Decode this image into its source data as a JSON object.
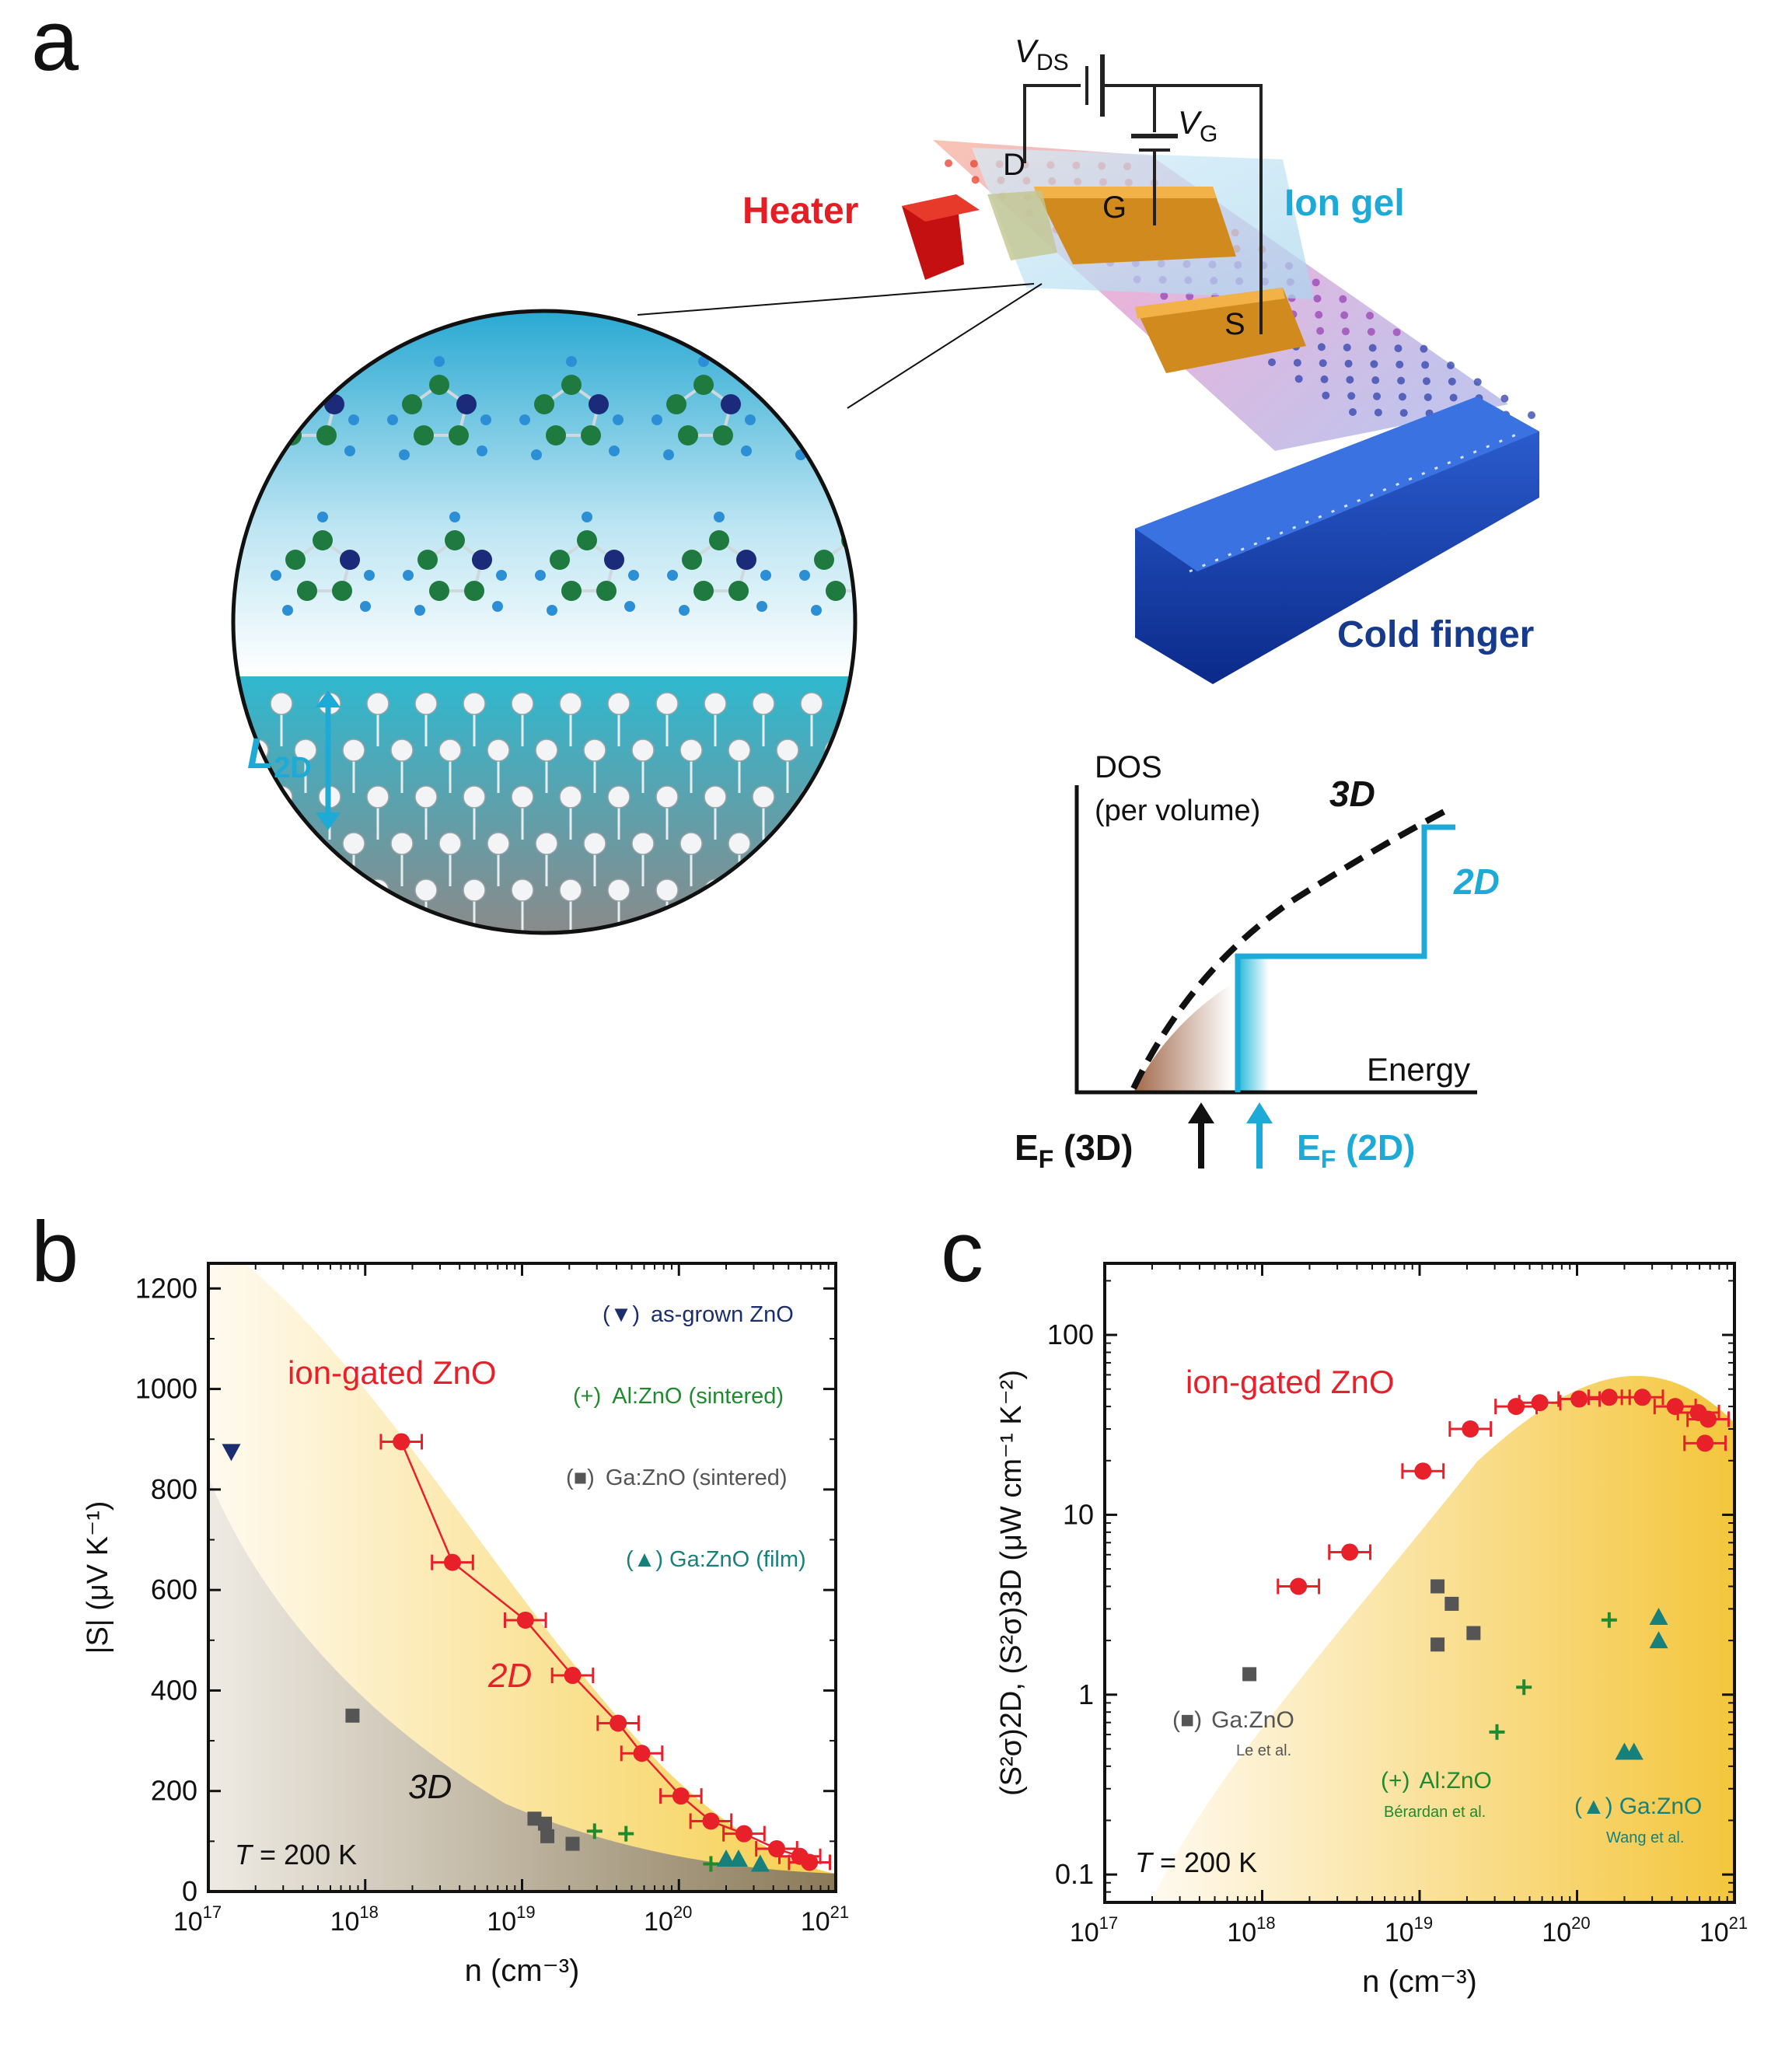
{
  "panel_a": {
    "letter": "a",
    "device": {
      "vds_main": "V",
      "vds_sub": "DS",
      "vg_main": "V",
      "vg_sub": "G",
      "drain": "D",
      "gate": "G",
      "source": "S",
      "heater": "Heater",
      "ion_gel": "Ion gel",
      "cold_finger": "Cold finger",
      "l2d_main": "L",
      "l2d_sub": "2D"
    },
    "dos": {
      "ylabel_line1": "DOS",
      "ylabel_line2": "(per volume)",
      "xlabel": "Energy",
      "label_3d": "3D",
      "label_2d": "2D",
      "ef3d_main": "E",
      "ef3d_sub": "F",
      "ef3d_rest": " (3D)",
      "ef2d_main": "E",
      "ef2d_sub": "F",
      "ef2d_rest": " (2D)"
    }
  },
  "panel_b": {
    "letter": "b",
    "curve_label": "ion-gated ZnO",
    "label_2d": "2D",
    "label_3d": "3D",
    "temp_prefix": "T",
    "temp_rest": " = 200 K",
    "legend": [
      {
        "marker": "(▼)",
        "label": "as-grown ZnO",
        "color": "#1a2e6e"
      },
      {
        "marker": "(+)",
        "label": "Al:ZnO (sintered)",
        "color": "#1f8a2e"
      },
      {
        "marker": "(■)",
        "label": "Ga:ZnO (sintered)",
        "color": "#555555"
      },
      {
        "marker": "(▲)",
        "label": "Ga:ZnO (film)",
        "color": "#17807a"
      }
    ]
  },
  "panel_c": {
    "letter": "c",
    "curve_label": "ion-gated ZnO",
    "temp_prefix": "T",
    "temp_rest": " = 200 K",
    "annotations": [
      {
        "marker": "(■)",
        "label": "Ga:ZnO",
        "ref": "Le et al.",
        "color": "#555555"
      },
      {
        "marker": "(+)",
        "label": "Al:ZnO",
        "ref": "Bérardan et al.",
        "color": "#1f8a2e"
      },
      {
        "marker": "(▲)",
        "label": "Ga:ZnO",
        "ref": "Wang et al.",
        "color": "#17807a"
      }
    ]
  },
  "chart_data": [
    {
      "panel": "b",
      "type": "scatter",
      "xscale": "log",
      "xlim": [
        1e+17,
        1e+21
      ],
      "ylim": [
        0,
        1250
      ],
      "xticks": [
        "10^17",
        "10^18",
        "10^19",
        "10^20",
        "10^21"
      ],
      "yticks": [
        0,
        200,
        400,
        600,
        800,
        1000,
        1200
      ],
      "xlabel": "n (cm⁻³)",
      "ylabel": "|S| (μV K⁻¹)",
      "series": [
        {
          "name": "ion-gated ZnO",
          "color": "#e8202a",
          "marker": "circle",
          "line": true,
          "errorbars_x": true,
          "x": [
            1.7e+18,
            3.6e+18,
            1.05e+19,
            2.1e+19,
            4.1e+19,
            5.8e+19,
            1.03e+20,
            1.6e+20,
            2.6e+20,
            4.2e+20,
            5.9e+20,
            6.8e+20
          ],
          "y": [
            895,
            655,
            540,
            430,
            335,
            275,
            190,
            140,
            115,
            85,
            70,
            58
          ]
        },
        {
          "name": "as-grown ZnO",
          "color": "#1a2e6e",
          "marker": "triangle-down",
          "x": [
            1.4e+17
          ],
          "y": [
            875
          ]
        },
        {
          "name": "Al:ZnO (sintered)",
          "color": "#1f8a2e",
          "marker": "plus",
          "x": [
            2.9e+19,
            4.6e+19,
            1.6e+20
          ],
          "y": [
            120,
            115,
            55
          ]
        },
        {
          "name": "Ga:ZnO (sintered)",
          "color": "#555555",
          "marker": "square",
          "x": [
            8.3e+17,
            1.2e+19,
            1.4e+19,
            1.45e+19,
            2.1e+19
          ],
          "y": [
            350,
            145,
            135,
            110,
            95
          ]
        },
        {
          "name": "Ga:ZnO (film)",
          "color": "#17807a",
          "marker": "triangle-up",
          "x": [
            2e+20,
            2.4e+20,
            3.3e+20
          ],
          "y": [
            65,
            65,
            55
          ]
        }
      ]
    },
    {
      "panel": "c",
      "type": "scatter",
      "xscale": "log",
      "yscale": "log",
      "xlim": [
        1e+17,
        1e+21
      ],
      "ylim": [
        0.07,
        250
      ],
      "xticks": [
        "10^17",
        "10^18",
        "10^19",
        "10^20",
        "10^21"
      ],
      "yticks": [
        "0.1",
        "1",
        "10",
        "100"
      ],
      "xlabel": "n (cm⁻³)",
      "ylabel": "(S²σ)2D, (S²σ)3D (μW cm⁻¹ K⁻²)",
      "series": [
        {
          "name": "ion-gated ZnO",
          "color": "#e8202a",
          "marker": "circle",
          "errorbars_x": true,
          "x": [
            1.7e+18,
            3.6e+18,
            1.05e+19,
            2.1e+19,
            4.1e+19,
            5.8e+19,
            1.03e+20,
            1.6e+20,
            2.6e+20,
            4.2e+20,
            5.9e+20,
            6.8e+20,
            6.5e+20
          ],
          "y": [
            4.0,
            6.2,
            17.5,
            30,
            40,
            42,
            44,
            45,
            45,
            40,
            37,
            34,
            25
          ]
        },
        {
          "name": "Ga:ZnO (Le et al.)",
          "color": "#555555",
          "marker": "square",
          "x": [
            8.3e+17,
            1.3e+19,
            1.3e+19,
            1.6e+19,
            2.2e+19
          ],
          "y": [
            1.3,
            4.0,
            1.9,
            3.2,
            2.2
          ]
        },
        {
          "name": "Al:ZnO (Bérardan et al.)",
          "color": "#1f8a2e",
          "marker": "plus",
          "x": [
            3.1e+19,
            4.6e+19,
            1.6e+20
          ],
          "y": [
            0.62,
            1.1,
            2.6
          ]
        },
        {
          "name": "Ga:ZnO (Wang et al.)",
          "color": "#17807a",
          "marker": "triangle-up",
          "x": [
            2e+20,
            2.3e+20,
            3.3e+20,
            3.3e+20
          ],
          "y": [
            0.48,
            0.48,
            2.7,
            2.0
          ]
        }
      ]
    }
  ]
}
